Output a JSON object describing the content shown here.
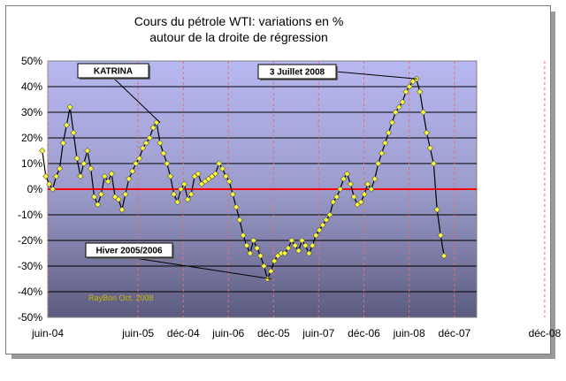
{
  "chart_data": {
    "type": "line",
    "title": "Cours du pétrole WTI: variations en %",
    "subtitle": "autour de la droite de régression",
    "xlabel": "",
    "ylabel": "",
    "ylim": [
      -50,
      50
    ],
    "yticks": [
      50,
      40,
      30,
      20,
      10,
      0,
      -10,
      -20,
      -30,
      -40,
      -50
    ],
    "ytick_labels": [
      "50%",
      "40%",
      "30%",
      "20%",
      "10%",
      "0%",
      "-10%",
      "-20%",
      "-30%",
      "-40%",
      "-50%"
    ],
    "xtick_labels": [
      "juin-04",
      "déc-04",
      "juin-05",
      "déc-05",
      "juin-06",
      "déc-06",
      "juin-07",
      "déc-07",
      "juin-08",
      "déc-08"
    ],
    "xlim": [
      "2004-06",
      "2009-03"
    ],
    "grid": true,
    "zero_line_color": "#ff0000",
    "marker_color": "#ffff33",
    "series": [
      {
        "x": [
          "2004-05-10",
          "2004-05-24",
          "2004-06-07",
          "2004-06-21",
          "2004-07-05",
          "2004-07-19",
          "2004-08-02",
          "2004-08-16",
          "2004-08-30",
          "2004-09-13",
          "2004-09-27",
          "2004-10-11",
          "2004-10-25",
          "2004-11-08",
          "2004-11-22",
          "2004-12-06",
          "2004-12-20",
          "2005-01-03",
          "2005-01-17",
          "2005-01-31",
          "2005-02-14",
          "2005-02-28",
          "2005-03-14",
          "2005-03-28",
          "2005-04-11",
          "2005-04-25",
          "2005-05-09",
          "2005-05-23",
          "2005-06-06",
          "2005-06-20",
          "2005-07-04",
          "2005-07-18",
          "2005-08-01",
          "2005-08-15",
          "2005-08-29",
          "2005-09-12",
          "2005-09-26",
          "2005-10-10",
          "2005-10-24",
          "2005-11-07",
          "2005-11-21",
          "2005-12-05",
          "2005-12-19",
          "2006-01-02",
          "2006-01-16",
          "2006-01-30",
          "2006-02-13",
          "2006-02-27",
          "2006-03-13",
          "2006-03-27",
          "2006-04-10",
          "2006-04-24",
          "2006-05-08",
          "2006-05-22",
          "2006-06-05",
          "2006-06-19",
          "2006-07-03",
          "2006-07-17",
          "2006-07-31",
          "2006-08-14",
          "2006-08-28",
          "2006-09-11",
          "2006-09-25",
          "2006-10-09",
          "2006-10-23",
          "2006-11-06",
          "2006-11-20",
          "2006-12-04",
          "2006-12-18",
          "2007-01-01",
          "2007-01-15",
          "2007-01-29",
          "2007-02-12",
          "2007-02-26",
          "2007-03-12",
          "2007-03-26",
          "2007-04-09",
          "2007-04-23",
          "2007-05-07",
          "2007-05-21",
          "2007-06-04",
          "2007-06-18",
          "2007-07-02",
          "2007-07-16",
          "2007-07-30",
          "2007-08-13",
          "2007-08-27",
          "2007-09-10",
          "2007-09-24",
          "2007-10-08",
          "2007-10-22",
          "2007-11-05",
          "2007-11-19",
          "2007-12-03",
          "2007-12-17",
          "2007-12-31",
          "2008-01-14",
          "2008-01-28",
          "2008-02-11",
          "2008-02-25",
          "2008-03-10",
          "2008-03-24",
          "2008-04-07",
          "2008-04-21",
          "2008-05-05",
          "2008-05-19",
          "2008-06-02",
          "2008-06-16",
          "2008-06-30",
          "2008-07-14",
          "2008-07-28",
          "2008-08-11",
          "2008-08-25",
          "2008-09-08",
          "2008-09-22",
          "2008-10-06",
          "2008-10-20"
        ],
        "values": [
          15,
          5,
          2,
          0,
          5,
          8,
          18,
          25,
          32,
          22,
          12,
          5,
          10,
          15,
          8,
          -3,
          -6,
          -2,
          5,
          3,
          6,
          -3,
          -4,
          -8,
          -2,
          4,
          7,
          10,
          12,
          16,
          18,
          20,
          24,
          26,
          18,
          14,
          10,
          5,
          -2,
          -5,
          0,
          2,
          -4,
          -2,
          5,
          6,
          2,
          3,
          4,
          5,
          6,
          10,
          8,
          5,
          3,
          -2,
          -7,
          -12,
          -18,
          -22,
          -25,
          -20,
          -23,
          -26,
          -30,
          -35,
          -32,
          -28,
          -26,
          -25,
          -25,
          -23,
          -20,
          -22,
          -24,
          -20,
          -22,
          -25,
          -22,
          -18,
          -16,
          -14,
          -12,
          -10,
          -5,
          -3,
          0,
          4,
          6,
          2,
          -3,
          -6,
          -5,
          -2,
          2,
          0,
          4,
          10,
          14,
          18,
          22,
          26,
          30,
          32,
          34,
          38,
          40,
          42,
          43,
          38,
          30,
          22,
          16,
          10,
          -8,
          -18,
          -26
        ],
        "marker": "diamond"
      }
    ],
    "annotations": [
      {
        "text": "KATRINA",
        "x": "2005-08-29",
        "y": 26
      },
      {
        "text": "3 Juillet 2008",
        "x": "2008-07-03",
        "y": 43
      },
      {
        "text": "Hiver 2005/2006",
        "x": "2006-11-20",
        "y": -35
      }
    ],
    "watermark": "RayBon Oct. 2008"
  }
}
